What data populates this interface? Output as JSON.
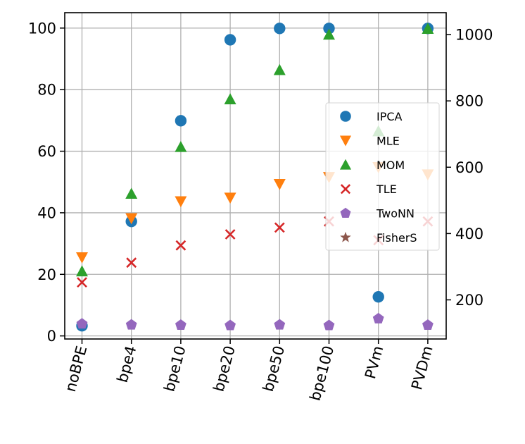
{
  "chart_data": {
    "type": "scatter",
    "categories": [
      "noBPE",
      "bpe4",
      "bpe10",
      "bpe20",
      "bpe50",
      "bpe100",
      "PVm",
      "PVDm"
    ],
    "y_left": {
      "lim": [
        -1,
        105
      ],
      "ticks": [
        0,
        20,
        40,
        60,
        80,
        100
      ]
    },
    "y_right": {
      "lim": [
        82,
        1066
      ],
      "ticks": [
        200,
        400,
        600,
        800,
        1000
      ]
    },
    "grid": true,
    "legend_position": "center-right",
    "series": [
      {
        "name": "IPCA",
        "axis": "left",
        "marker": "circle",
        "color": "#1f77b4",
        "values": [
          3.3,
          37.2,
          69.9,
          96.2,
          99.9,
          99.9,
          12.7,
          99.9
        ]
      },
      {
        "name": "MLE",
        "axis": "right",
        "marker": "triangle-down",
        "color": "#ff7f0e",
        "values": [
          328,
          446,
          497,
          508,
          549,
          570,
          600,
          578
        ]
      },
      {
        "name": "MOM",
        "axis": "left",
        "marker": "triangle-up",
        "color": "#2ca02c",
        "values": [
          21.0,
          46.2,
          61.4,
          76.9,
          86.4,
          97.9,
          66.5,
          99.8
        ]
      },
      {
        "name": "TLE",
        "axis": "left",
        "marker": "x",
        "color": "#d62728",
        "values": [
          17.4,
          23.8,
          29.4,
          33.0,
          35.2,
          37.2,
          31.1,
          37.2
        ]
      },
      {
        "name": "TwoNN",
        "axis": "left",
        "marker": "pentagon",
        "color": "#9467bd",
        "values": [
          3.9,
          3.6,
          3.5,
          3.4,
          3.6,
          3.4,
          5.6,
          3.5
        ]
      },
      {
        "name": "FisherS",
        "axis": "left",
        "marker": "star",
        "color": "#8c564b",
        "values": []
      }
    ]
  }
}
